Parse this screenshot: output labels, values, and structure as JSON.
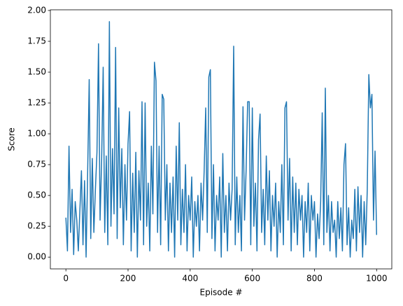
{
  "chart_data": {
    "type": "line",
    "xlabel": "Episode #",
    "ylabel": "Score",
    "color": "#1f77b4",
    "xlim": [
      -49.95,
      1048.95
    ],
    "ylim": [
      -0.0955,
      2.0055
    ],
    "xticks": [
      0,
      200,
      400,
      600,
      800,
      1000
    ],
    "yticks": [
      {
        "value": 0,
        "label": "0.00"
      },
      {
        "value": 0.25,
        "label": "0.25"
      },
      {
        "value": 0.5,
        "label": "0.50"
      },
      {
        "value": 0.75,
        "label": "0.75"
      },
      {
        "value": 1,
        "label": "1.00"
      },
      {
        "value": 1.25,
        "label": "1.25"
      },
      {
        "value": 1.5,
        "label": "1.50"
      },
      {
        "value": 1.75,
        "label": "1.75"
      },
      {
        "value": 2,
        "label": "2.00"
      }
    ],
    "grid": false,
    "x": [
      0,
      5,
      10,
      15,
      20,
      25,
      30,
      35,
      40,
      45,
      50,
      55,
      60,
      65,
      70,
      75,
      80,
      85,
      90,
      95,
      100,
      105,
      110,
      115,
      120,
      125,
      130,
      135,
      140,
      145,
      150,
      155,
      160,
      165,
      170,
      175,
      180,
      185,
      190,
      195,
      200,
      205,
      210,
      215,
      220,
      225,
      230,
      235,
      240,
      245,
      250,
      255,
      260,
      265,
      270,
      275,
      280,
      285,
      290,
      295,
      300,
      305,
      310,
      315,
      320,
      325,
      330,
      335,
      340,
      345,
      350,
      355,
      360,
      365,
      370,
      375,
      380,
      385,
      390,
      395,
      400,
      405,
      410,
      415,
      420,
      425,
      430,
      435,
      440,
      445,
      450,
      455,
      460,
      465,
      470,
      475,
      480,
      485,
      490,
      495,
      500,
      505,
      510,
      515,
      520,
      525,
      530,
      535,
      540,
      545,
      550,
      555,
      560,
      565,
      570,
      575,
      580,
      585,
      590,
      595,
      600,
      605,
      610,
      615,
      620,
      625,
      630,
      635,
      640,
      645,
      650,
      655,
      660,
      665,
      670,
      675,
      680,
      685,
      690,
      695,
      700,
      705,
      710,
      715,
      720,
      725,
      730,
      735,
      740,
      745,
      750,
      755,
      760,
      765,
      770,
      775,
      780,
      785,
      790,
      795,
      800,
      805,
      810,
      815,
      820,
      825,
      830,
      835,
      840,
      845,
      850,
      855,
      860,
      865,
      870,
      875,
      880,
      885,
      890,
      895,
      900,
      905,
      910,
      915,
      920,
      925,
      930,
      935,
      940,
      945,
      950,
      955,
      960,
      965,
      970,
      975,
      980,
      985,
      990,
      995,
      1000
    ],
    "values": [
      0.32,
      0.05,
      0.9,
      0.2,
      0.55,
      0.02,
      0.45,
      0.3,
      0.05,
      0.38,
      0.7,
      0.1,
      0.62,
      0,
      0.68,
      1.44,
      0.15,
      0.8,
      0.2,
      0.55,
      0.85,
      1.73,
      0.3,
      0.78,
      1.54,
      0.2,
      0.82,
      0.1,
      1.91,
      0.25,
      0.88,
      0.35,
      1.7,
      0.15,
      1.21,
      0.4,
      0.88,
      0.1,
      0.75,
      0.3,
      0.92,
      1.18,
      0.05,
      0.68,
      0.2,
      0.85,
      0,
      0.7,
      0.3,
      1.26,
      0.1,
      1.25,
      0.25,
      0.6,
      0.05,
      0.9,
      0.35,
      1.58,
      1.43,
      0.2,
      0.9,
      0.1,
      1.32,
      1.28,
      0.3,
      0.75,
      0.05,
      0.6,
      0.2,
      0.65,
      0,
      0.9,
      0.3,
      1.09,
      0.1,
      0.55,
      0.2,
      0.75,
      0.05,
      0.5,
      0.3,
      0.65,
      0,
      0.45,
      0.25,
      0.5,
      0.05,
      0.6,
      0.3,
      0.7,
      1.21,
      0.2,
      1.46,
      1.52,
      0.15,
      0.75,
      0.05,
      0.5,
      0.3,
      0.65,
      0,
      0.84,
      0.2,
      0.5,
      0.05,
      0.6,
      0.3,
      0.55,
      1.71,
      0.1,
      0.65,
      0.2,
      0.5,
      0.05,
      1.22,
      0.3,
      0.7,
      1.26,
      1.26,
      0.1,
      1.21,
      0.25,
      0.6,
      0.05,
      0.95,
      1.16,
      0.2,
      0.55,
      0.1,
      0.82,
      0.3,
      0.7,
      0.05,
      0.5,
      0.25,
      0.6,
      0,
      0.45,
      0.2,
      0.75,
      0.1,
      1.21,
      1.26,
      0.3,
      0.8,
      0.05,
      0.65,
      0.2,
      0.6,
      0.1,
      0.55,
      0.3,
      0.5,
      0,
      0.45,
      0.2,
      0.6,
      0.05,
      0.5,
      0.3,
      0.45,
      0,
      0.35,
      0.15,
      0.45,
      1.17,
      0.1,
      1.37,
      0.2,
      0.5,
      0.05,
      0.45,
      0.2,
      0.3,
      0,
      0.45,
      0.15,
      0.4,
      0.05,
      0.75,
      0.92,
      0.1,
      0.4,
      0,
      0.3,
      0.15,
      0.55,
      0.05,
      0.57,
      0.2,
      0.5,
      0,
      0.45,
      0.1,
      0.55,
      1.48,
      1.21,
      1.32,
      0.3,
      0.86,
      0.18
    ]
  }
}
